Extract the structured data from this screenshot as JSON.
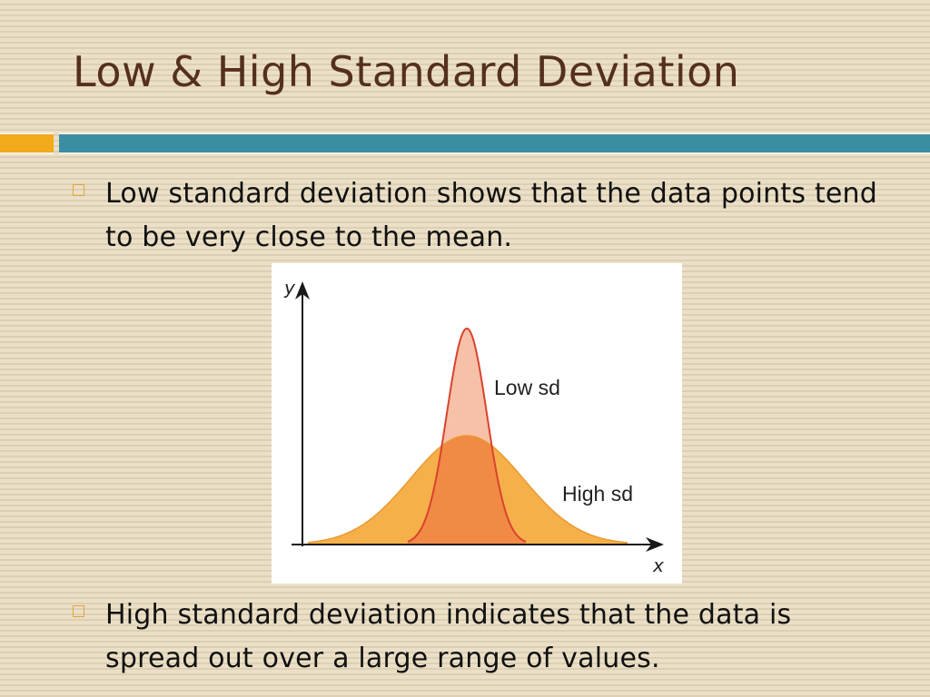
{
  "slide": {
    "title": "Low & High Standard Deviation",
    "bullets": [
      "Low standard deviation shows that the data points tend to be very close to the mean.",
      "High standard deviation indicates that the data is spread out over a large range of values."
    ]
  },
  "figure": {
    "y_axis_label": "y",
    "x_axis_label": "x",
    "low_sd_label": "Low sd",
    "high_sd_label": "High sd",
    "colors": {
      "low_sd_fill": "#f7c0a8",
      "high_sd_fill": "#f6b04a",
      "overlap_fill": "#f08a44",
      "low_sd_stroke": "#d9432e",
      "high_sd_stroke": "#e89a30",
      "axis": "#1a1a1a"
    }
  },
  "theme": {
    "title_color": "#55301d",
    "accent_orange": "#f2a91a",
    "accent_teal": "#3b8ea1"
  }
}
